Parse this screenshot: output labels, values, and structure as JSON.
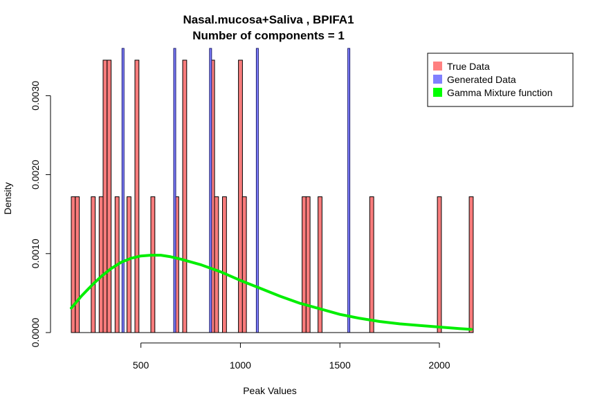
{
  "chart_data": {
    "type": "bar",
    "title": "Nasal.mucosa+Saliva , BPIFA1",
    "subtitle": "Number of components =  1",
    "xlabel": "Peak Values",
    "ylabel": "Density",
    "xlim": [
      150,
      2160
    ],
    "ylim": [
      0,
      0.00345
    ],
    "x_ticks": [
      500,
      1000,
      1500,
      2000
    ],
    "x_tick_labels": [
      "500",
      "1000",
      "1500",
      "2000"
    ],
    "y_ticks": [
      0.0,
      0.001,
      0.002,
      0.003
    ],
    "y_tick_labels": [
      "0.0000",
      "0.0010",
      "0.0020",
      "0.0030"
    ],
    "bin_width": 20,
    "grid": false,
    "legend_position": "top-right",
    "legend": [
      {
        "label": "True Data",
        "color": "#FF8080"
      },
      {
        "label": "Generated Data",
        "color": "#8080FF"
      },
      {
        "label": "Gamma Mixture function",
        "color": "#00FF00"
      }
    ],
    "series": [
      {
        "name": "True Data",
        "color": "#F87C7C",
        "bins": [
          {
            "x": 160,
            "y": 0.00172
          },
          {
            "x": 180,
            "y": 0.00172
          },
          {
            "x": 260,
            "y": 0.00172
          },
          {
            "x": 300,
            "y": 0.00172
          },
          {
            "x": 320,
            "y": 0.00345
          },
          {
            "x": 340,
            "y": 0.00345
          },
          {
            "x": 380,
            "y": 0.00172
          },
          {
            "x": 440,
            "y": 0.00172
          },
          {
            "x": 480,
            "y": 0.00345
          },
          {
            "x": 560,
            "y": 0.00172
          },
          {
            "x": 680,
            "y": 0.00172
          },
          {
            "x": 720,
            "y": 0.00345
          },
          {
            "x": 860,
            "y": 0.00345
          },
          {
            "x": 880,
            "y": 0.00172
          },
          {
            "x": 920,
            "y": 0.00172
          },
          {
            "x": 1000,
            "y": 0.00345
          },
          {
            "x": 1020,
            "y": 0.00172
          },
          {
            "x": 1320,
            "y": 0.00172
          },
          {
            "x": 1340,
            "y": 0.00172
          },
          {
            "x": 1400,
            "y": 0.00172
          },
          {
            "x": 1660,
            "y": 0.00172
          },
          {
            "x": 2000,
            "y": 0.00172
          },
          {
            "x": 2160,
            "y": 0.00172
          }
        ]
      },
      {
        "name": "Generated Data",
        "color": "#3A3AA0",
        "lines": [
          410,
          670,
          850,
          1085,
          1545
        ]
      },
      {
        "name": "Gamma Mixture function",
        "color": "#00EE00",
        "x": [
          150,
          200,
          250,
          300,
          350,
          400,
          450,
          500,
          550,
          600,
          650,
          700,
          800,
          900,
          1000,
          1100,
          1200,
          1300,
          1400,
          1500,
          1600,
          1700,
          1800,
          1900,
          2000,
          2100,
          2160
        ],
        "y": [
          0.00031,
          0.00046,
          0.00059,
          0.00071,
          0.00081,
          0.00089,
          0.00094,
          0.00097,
          0.00098,
          0.00098,
          0.00096,
          0.00093,
          0.00086,
          0.00077,
          0.00066,
          0.00056,
          0.00046,
          0.00037,
          0.0003,
          0.00023,
          0.00018,
          0.00014,
          0.00011,
          9e-05,
          7e-05,
          5e-05,
          4e-05
        ]
      }
    ]
  }
}
